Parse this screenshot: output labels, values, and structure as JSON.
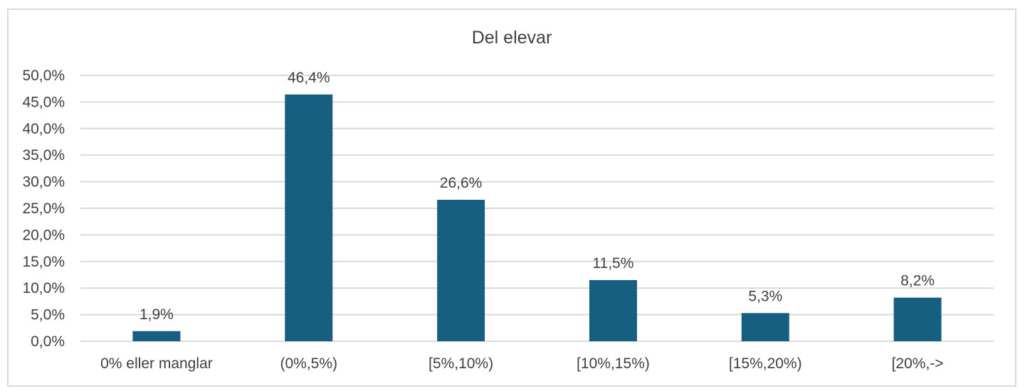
{
  "chart_data": {
    "type": "bar",
    "title": "Del elevar",
    "xlabel": "",
    "ylabel": "",
    "categories": [
      "0% eller manglar",
      "(0%,5%)",
      "[5%,10%)",
      "[10%,15%)",
      "[15%,20%)",
      "[20%,->"
    ],
    "values": [
      1.9,
      46.4,
      26.6,
      11.5,
      5.3,
      8.2
    ],
    "data_labels": [
      "1,9%",
      "46,4%",
      "26,6%",
      "11,5%",
      "5,3%",
      "8,2%"
    ],
    "ylim": [
      0,
      50
    ],
    "yticks": [
      0,
      5,
      10,
      15,
      20,
      25,
      30,
      35,
      40,
      45,
      50
    ],
    "ytick_labels": [
      "0,0%",
      "5,0%",
      "10,0%",
      "15,0%",
      "20,0%",
      "25,0%",
      "30,0%",
      "35,0%",
      "40,0%",
      "45,0%",
      "50,0%"
    ],
    "grid": true,
    "legend": "none",
    "bar_color": "#175f80",
    "grid_color": "#d9d9d9",
    "border_color": "#d9d9d9"
  }
}
